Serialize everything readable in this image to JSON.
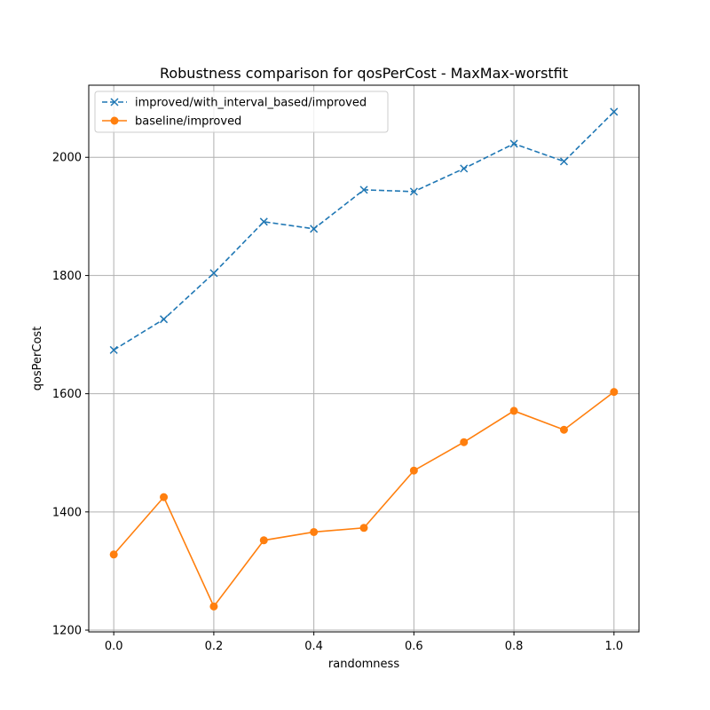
{
  "chart_data": {
    "type": "line",
    "title": "Robustness comparison for qosPerCost - MaxMax-worstfit",
    "xlabel": "randomness",
    "ylabel": "qosPerCost",
    "xlim": [
      -0.05,
      1.05
    ],
    "ylim": [
      1197,
      2122
    ],
    "xticks": [
      0.0,
      0.2,
      0.4,
      0.6,
      0.8,
      1.0
    ],
    "xtick_labels": [
      "0.0",
      "0.2",
      "0.4",
      "0.6",
      "0.8",
      "1.0"
    ],
    "yticks": [
      1200,
      1400,
      1600,
      1800,
      2000
    ],
    "ytick_labels": [
      "1200",
      "1400",
      "1600",
      "1800",
      "2000"
    ],
    "grid": true,
    "legend_position": "upper-left",
    "x": [
      0.0,
      0.1,
      0.2,
      0.3,
      0.4,
      0.5,
      0.6,
      0.7,
      0.8,
      0.9,
      1.0
    ],
    "series": [
      {
        "name": "improved/with_interval_based/improved",
        "color": "#1f77b4",
        "line_style": "dashed",
        "marker": "x",
        "values": [
          1674,
          1726,
          1804,
          1891,
          1879,
          1945,
          1942,
          1981,
          2023,
          1993,
          2077
        ]
      },
      {
        "name": "baseline/improved",
        "color": "#ff7f0e",
        "line_style": "solid",
        "marker": "circle",
        "values": [
          1328,
          1425,
          1240,
          1352,
          1366,
          1373,
          1470,
          1518,
          1571,
          1539,
          1603
        ]
      }
    ]
  }
}
